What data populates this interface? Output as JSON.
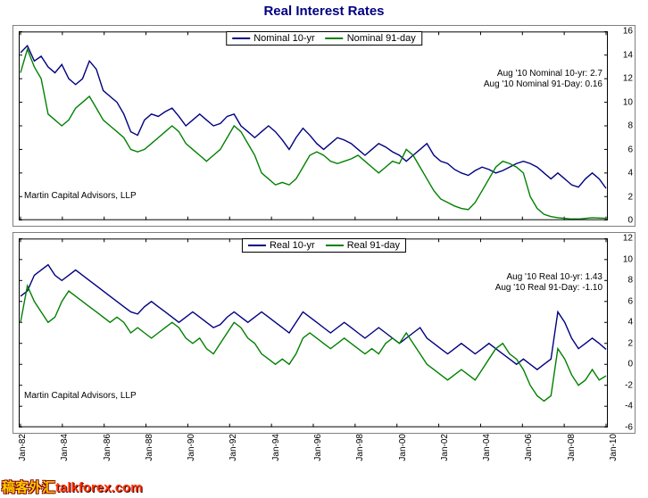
{
  "title": "Real Interest Rates",
  "x_labels": [
    "Jan-82",
    "Jan-84",
    "Jan-86",
    "Jan-88",
    "Jan-90",
    "Jan-92",
    "Jan-94",
    "Jan-96",
    "Jan-98",
    "Jan-00",
    "Jan-02",
    "Jan-04",
    "Jan-06",
    "Jan-08",
    "Jan-10"
  ],
  "attrib": "Martin Capital Advisors, LLP",
  "watermark_cn": "稿客外汇",
  "watermark_en": "talkforex.com",
  "charts": [
    {
      "legend": [
        {
          "label": "Nominal 10-yr",
          "color": "#000080"
        },
        {
          "label": "Nominal 91-day",
          "color": "#008000"
        }
      ],
      "ylim": [
        0,
        16
      ],
      "ytick_step": 2,
      "annot": [
        "Aug '10 Nominal 10-yr: 2.7",
        "Aug '10 Nominal 91-Day: 0.16"
      ],
      "series": [
        {
          "color": "#000080",
          "data": [
            14.2,
            14.8,
            13.5,
            13.9,
            13.0,
            12.5,
            13.2,
            12.0,
            11.5,
            12.0,
            13.5,
            12.8,
            11.0,
            10.5,
            10.0,
            9.0,
            7.5,
            7.2,
            8.5,
            9.0,
            8.8,
            9.2,
            9.5,
            8.8,
            8.0,
            8.5,
            9.0,
            8.5,
            8.0,
            8.2,
            8.8,
            9.0,
            8.0,
            7.5,
            7.0,
            7.5,
            8.0,
            7.5,
            6.8,
            6.0,
            7.0,
            7.8,
            7.2,
            6.5,
            6.0,
            6.5,
            7.0,
            6.8,
            6.5,
            6.0,
            5.5,
            6.0,
            6.5,
            6.2,
            5.8,
            5.5,
            5.0,
            5.5,
            6.0,
            6.5,
            5.5,
            5.0,
            4.8,
            4.3,
            4.0,
            3.8,
            4.2,
            4.5,
            4.3,
            4.0,
            4.2,
            4.5,
            4.8,
            5.0,
            4.8,
            4.5,
            4.0,
            3.5,
            4.0,
            3.5,
            3.0,
            2.8,
            3.5,
            4.0,
            3.5,
            2.7
          ]
        },
        {
          "color": "#008000",
          "data": [
            12.5,
            14.5,
            13.0,
            12.0,
            9.0,
            8.5,
            8.0,
            8.5,
            9.5,
            10.0,
            10.5,
            9.5,
            8.5,
            8.0,
            7.5,
            7.0,
            6.0,
            5.8,
            6.0,
            6.5,
            7.0,
            7.5,
            8.0,
            7.5,
            6.5,
            6.0,
            5.5,
            5.0,
            5.5,
            6.0,
            7.0,
            8.0,
            7.5,
            6.5,
            5.5,
            4.0,
            3.5,
            3.0,
            3.2,
            3.0,
            3.5,
            4.5,
            5.5,
            5.8,
            5.5,
            5.0,
            4.8,
            5.0,
            5.2,
            5.5,
            5.0,
            4.5,
            4.0,
            4.5,
            5.0,
            4.8,
            6.0,
            5.5,
            4.5,
            3.5,
            2.5,
            1.8,
            1.5,
            1.2,
            1.0,
            0.9,
            1.5,
            2.5,
            3.5,
            4.5,
            5.0,
            4.8,
            4.5,
            4.0,
            2.0,
            1.0,
            0.5,
            0.3,
            0.2,
            0.15,
            0.1,
            0.1,
            0.15,
            0.2,
            0.18,
            0.16
          ]
        }
      ]
    },
    {
      "legend": [
        {
          "label": "Real 10-yr",
          "color": "#000080"
        },
        {
          "label": "Real 91-day",
          "color": "#008000"
        }
      ],
      "ylim": [
        -6,
        12
      ],
      "ytick_step": 2,
      "annot": [
        "Aug '10 Real 10-yr: 1.43",
        "Aug '10 Real 91-Day: -1.10"
      ],
      "series": [
        {
          "color": "#000080",
          "data": [
            6.5,
            7.0,
            8.5,
            9.0,
            9.5,
            8.5,
            8.0,
            8.5,
            9.0,
            8.5,
            8.0,
            7.5,
            7.0,
            6.5,
            6.0,
            5.5,
            5.0,
            4.8,
            5.5,
            6.0,
            5.5,
            5.0,
            4.5,
            4.0,
            4.5,
            5.0,
            4.5,
            4.0,
            3.5,
            3.8,
            4.5,
            5.0,
            4.5,
            4.0,
            4.5,
            5.0,
            4.5,
            4.0,
            3.5,
            3.0,
            4.0,
            5.0,
            4.5,
            4.0,
            3.5,
            3.0,
            3.5,
            4.0,
            3.5,
            3.0,
            2.5,
            3.0,
            3.5,
            3.0,
            2.5,
            2.0,
            2.5,
            3.0,
            3.5,
            2.5,
            2.0,
            1.5,
            1.0,
            1.5,
            2.0,
            1.5,
            1.0,
            1.5,
            2.0,
            1.5,
            1.0,
            0.5,
            0.0,
            0.5,
            0.0,
            -0.5,
            0.0,
            0.5,
            5.0,
            4.0,
            2.5,
            1.5,
            2.0,
            2.5,
            2.0,
            1.43
          ]
        },
        {
          "color": "#008000",
          "data": [
            4.0,
            7.5,
            6.0,
            5.0,
            4.0,
            4.5,
            6.0,
            7.0,
            6.5,
            6.0,
            5.5,
            5.0,
            4.5,
            4.0,
            4.5,
            4.0,
            3.0,
            3.5,
            3.0,
            2.5,
            3.0,
            3.5,
            4.0,
            3.5,
            2.5,
            2.0,
            2.5,
            1.5,
            1.0,
            2.0,
            3.0,
            4.0,
            3.5,
            2.5,
            2.0,
            1.0,
            0.5,
            0.0,
            0.5,
            0.0,
            1.0,
            2.5,
            3.0,
            2.5,
            2.0,
            1.5,
            2.0,
            2.5,
            2.0,
            1.5,
            1.0,
            1.5,
            1.0,
            2.0,
            2.5,
            2.0,
            3.0,
            2.0,
            1.0,
            0.0,
            -0.5,
            -1.0,
            -1.5,
            -1.0,
            -0.5,
            -1.0,
            -1.5,
            -0.5,
            0.5,
            1.5,
            2.0,
            1.0,
            0.5,
            -0.5,
            -2.0,
            -3.0,
            -3.5,
            -3.0,
            1.5,
            0.5,
            -1.0,
            -2.0,
            -1.5,
            -0.5,
            -1.5,
            -1.1
          ]
        }
      ]
    }
  ]
}
